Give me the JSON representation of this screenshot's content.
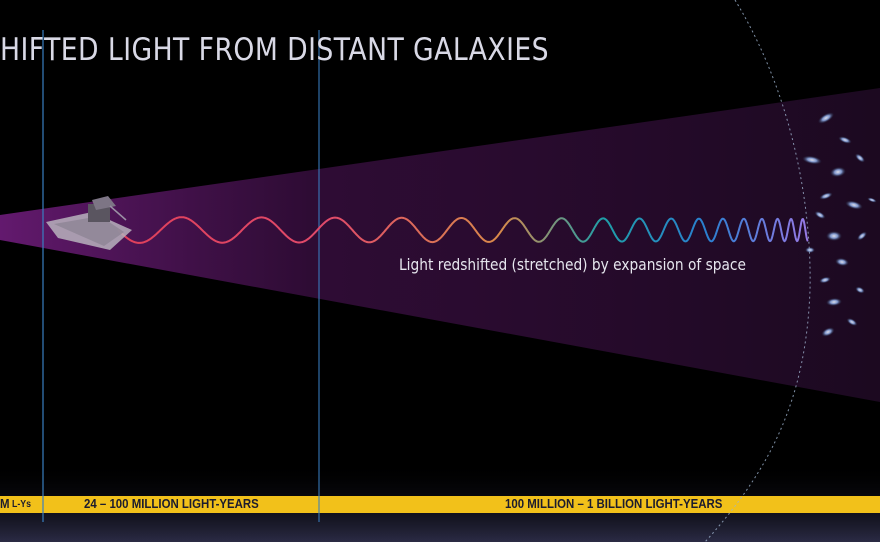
{
  "title": "HIFTED LIGHT FROM DISTANT GALAXIES",
  "wave_caption": "Light redshifted (stretched) by expansion of space",
  "distance_bands": [
    {
      "label": "M"
    },
    {
      "label": "L-Ys"
    },
    {
      "label": "24 – 100 MILLION LIGHT-YEARS"
    },
    {
      "label": "100 MILLION  – 1 BILLION LIGHT-YEARS"
    }
  ],
  "colors": {
    "background": "#000000",
    "beam": "#b42ec8",
    "band": "#f2c11a",
    "band_base": "#2b2b45",
    "marker_line": "#3a7fc0",
    "boundary_arc": "#9fb4d0",
    "wave_red": "#e0405a",
    "wave_orange": "#d98a4a",
    "wave_blue": "#2a7fd0",
    "wave_violet": "#8a6ae0"
  },
  "icons": [
    "telescope-icon",
    "galaxy-cluster-icon"
  ]
}
